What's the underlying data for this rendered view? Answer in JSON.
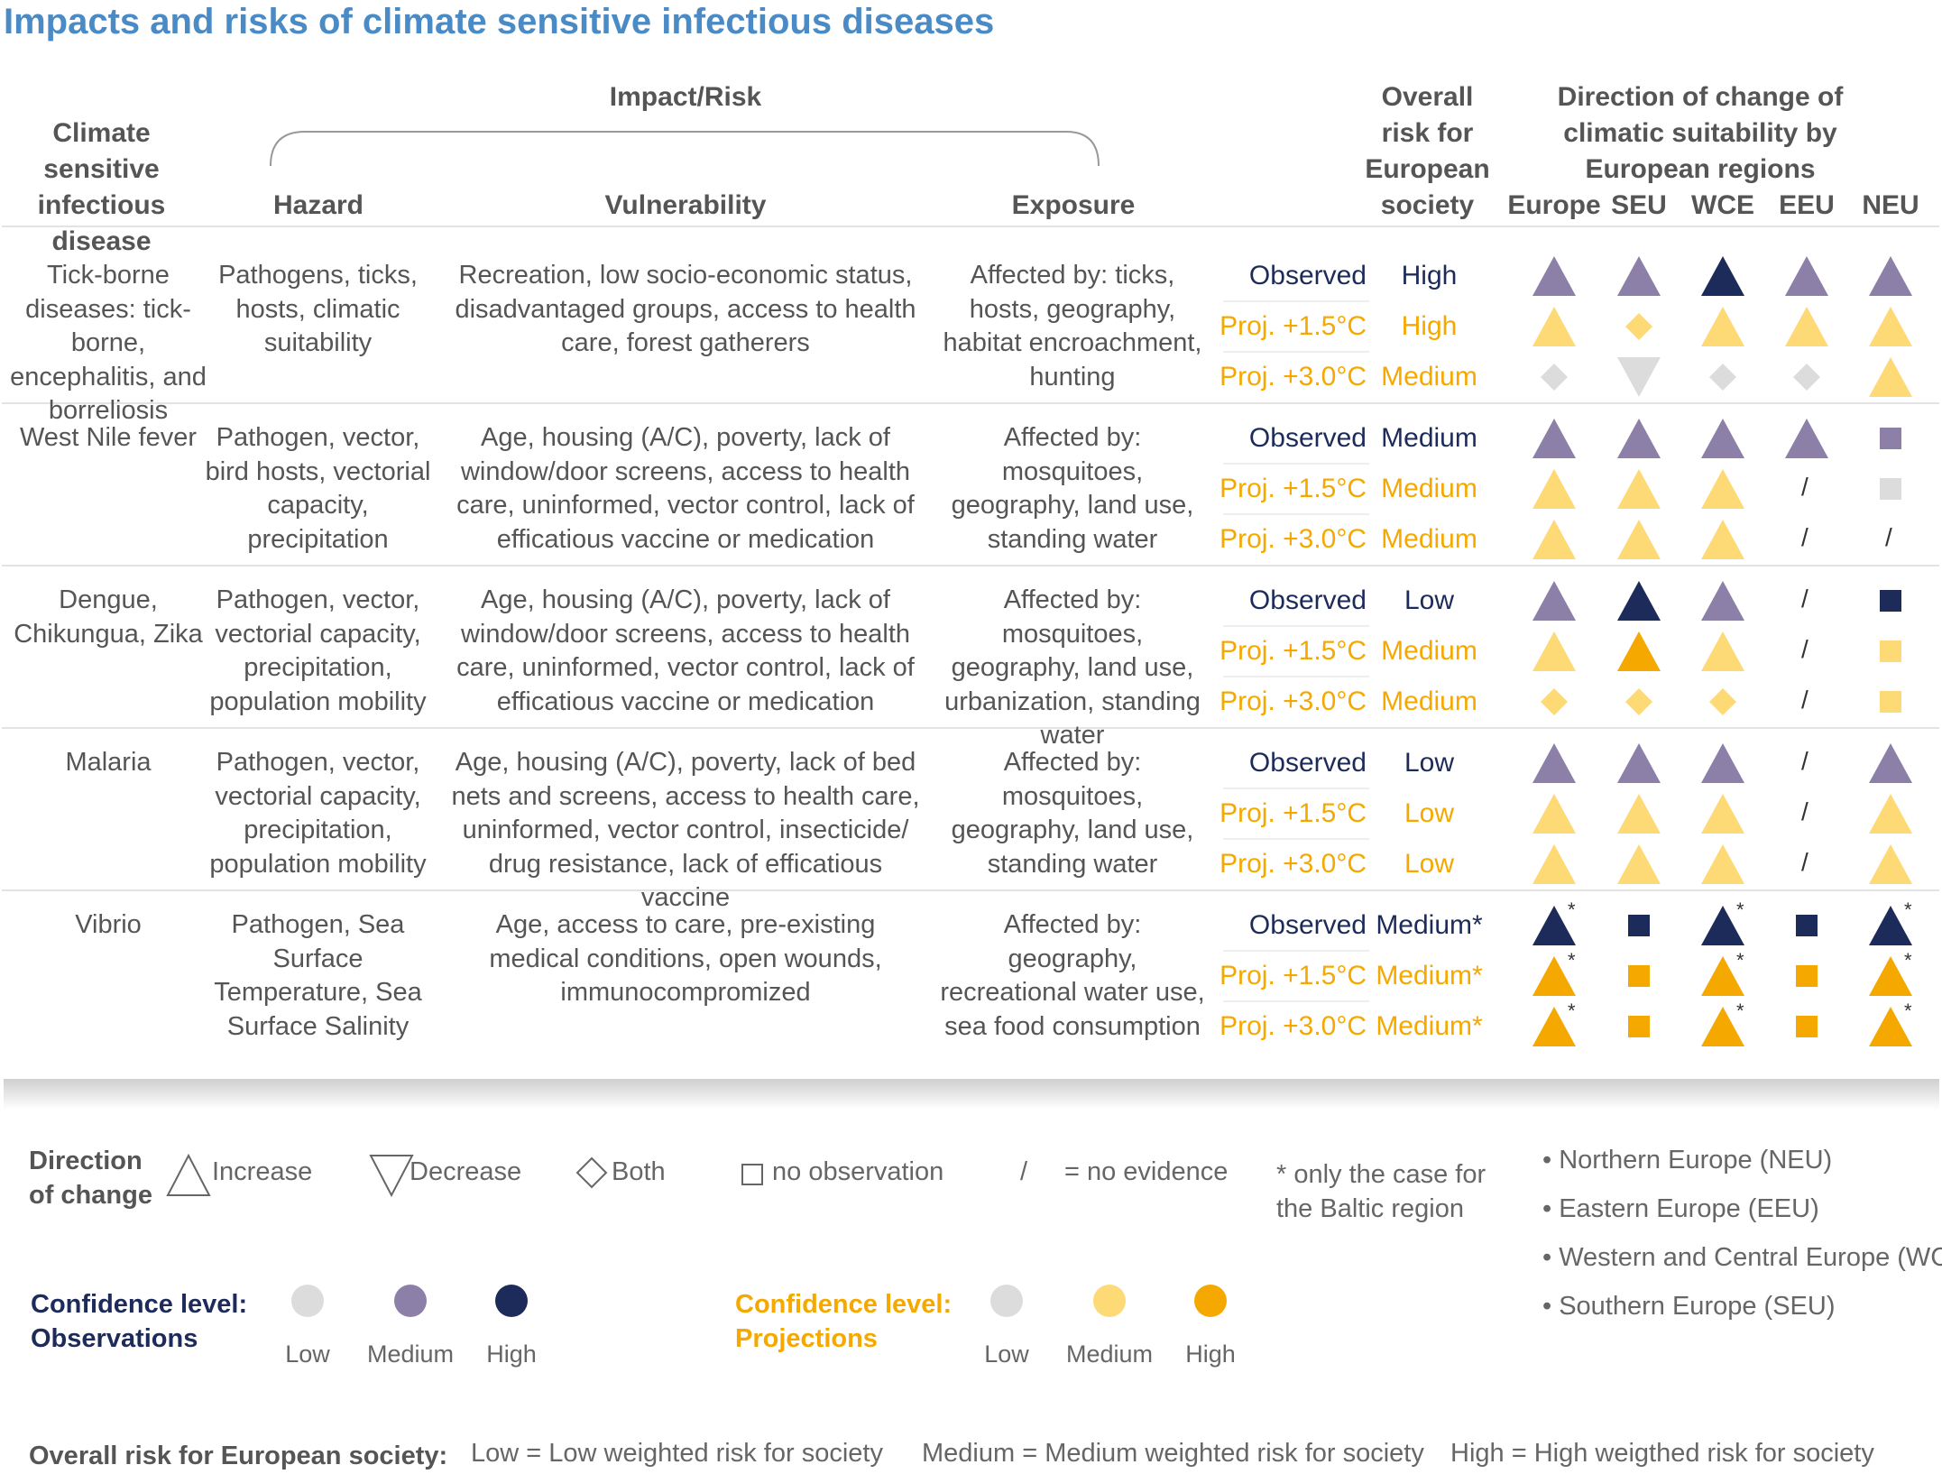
{
  "title": "Impacts and risks of climate sensitive infectious diseases",
  "headers": {
    "disease": "Climate sensitive infectious disease",
    "impact_risk": "Impact/Risk",
    "hazard": "Hazard",
    "vulnerability": "Vulnerability",
    "exposure": "Exposure",
    "overall_risk": "Overall risk for European society",
    "direction": "Direction of change of climatic suitability by European regions",
    "regions": [
      "Europe",
      "SEU",
      "WCE",
      "EEU",
      "NEU"
    ]
  },
  "period_labels": [
    "Observed",
    "Proj. +1.5°C",
    "Proj. +3.0°C"
  ],
  "rows": [
    {
      "disease": "Tick-borne diseases: tick-borne, encephalitis, and borreliosis",
      "hazard": "Pathogens, ticks, hosts, climatic suitability",
      "vulnerability": "Recreation, low socio-economic status, disadvantaged groups, access to health care, forest gatherers",
      "exposure": "Affected by: ticks, hosts, geography, habitat encroachment, hunting",
      "risk": [
        "High",
        "High",
        "Medium"
      ],
      "symbols": [
        [
          "up-med-obs",
          "up-med-obs",
          "up-high-obs",
          "up-med-obs",
          "up-med-obs"
        ],
        [
          "up-med-proj",
          "both-med-proj",
          "up-med-proj",
          "up-med-proj",
          "up-med-proj"
        ],
        [
          "both-low",
          "down-low",
          "both-low",
          "both-low",
          "up-med-proj"
        ]
      ]
    },
    {
      "disease": "West Nile fever",
      "hazard": "Pathogen, vector, bird hosts, vectorial capacity, precipitation",
      "vulnerability": "Age, housing (A/C), poverty, lack of window/door screens, access to health care, uninformed, vector control, lack of efficatious vaccine or medication",
      "exposure": "Affected by: mosquitoes, geography, land use, standing water",
      "risk": [
        "Medium",
        "Medium",
        "Medium"
      ],
      "symbols": [
        [
          "up-med-obs",
          "up-med-obs",
          "up-med-obs",
          "up-med-obs",
          "sq-med-obs"
        ],
        [
          "up-med-proj",
          "up-med-proj",
          "up-med-proj",
          "slash",
          "sq-low"
        ],
        [
          "up-med-proj",
          "up-med-proj",
          "up-med-proj",
          "slash",
          "slash"
        ]
      ]
    },
    {
      "disease": "Dengue, Chikungua, Zika",
      "hazard": "Pathogen, vector, vectorial capacity, precipitation, population mobility",
      "vulnerability": "Age, housing (A/C), poverty, lack of window/door screens, access to health care, uninformed, vector control, lack of efficatious vaccine or medication",
      "exposure": "Affected by: mosquitoes, geography, land use, urbanization, standing water",
      "risk": [
        "Low",
        "Medium",
        "Medium"
      ],
      "symbols": [
        [
          "up-med-obs",
          "up-high-obs",
          "up-med-obs",
          "slash",
          "sq-high-obs"
        ],
        [
          "up-med-proj",
          "up-high-proj",
          "up-med-proj",
          "slash",
          "sq-med-proj"
        ],
        [
          "both-med-proj",
          "both-med-proj",
          "both-med-proj",
          "slash",
          "sq-med-proj"
        ]
      ]
    },
    {
      "disease": "Malaria",
      "hazard": "Pathogen, vector, vectorial capacity, precipitation, population mobility",
      "vulnerability": "Age, housing (A/C), poverty, lack of bed nets and screens, access to health care, uninformed, vector control, insecticide/ drug resistance, lack of efficatious vaccine",
      "exposure": "Affected by: mosquitoes, geography, land use, standing water",
      "risk": [
        "Low",
        "Low",
        "Low"
      ],
      "symbols": [
        [
          "up-med-obs",
          "up-med-obs",
          "up-med-obs",
          "slash",
          "up-med-obs"
        ],
        [
          "up-med-proj",
          "up-med-proj",
          "up-med-proj",
          "slash",
          "up-med-proj"
        ],
        [
          "up-med-proj",
          "up-med-proj",
          "up-med-proj",
          "slash",
          "up-med-proj"
        ]
      ]
    },
    {
      "disease": "Vibrio",
      "hazard": "Pathogen, Sea Surface Temperature, Sea Surface Salinity",
      "vulnerability": "Age, access to care, pre-existing medical conditions, open wounds, immunocompromized",
      "exposure": "Affected by: geography, recreational water use, sea food consumption",
      "risk": [
        "Medium*",
        "Medium*",
        "Medium*"
      ],
      "symbols": [
        [
          "up-high-obs*",
          "sq-high-obs",
          "up-high-obs*",
          "sq-high-obs",
          "up-high-obs*"
        ],
        [
          "up-high-proj*",
          "sq-high-proj",
          "up-high-proj*",
          "sq-high-proj",
          "up-high-proj*"
        ],
        [
          "up-high-proj*",
          "sq-high-proj",
          "up-high-proj*",
          "sq-high-proj",
          "up-high-proj*"
        ]
      ]
    }
  ],
  "legend": {
    "direction_title": "Direction of change",
    "increase": "Increase",
    "decrease": "Decrease",
    "both": "Both",
    "no_observation": "no observation",
    "slash": "/",
    "no_evidence": "= no evidence",
    "star_note": "* only the case for the Baltic region",
    "regions": [
      "• Northern Europe (NEU)",
      "• Eastern Europe (EEU)",
      "• Western and Central Europe (WCE)",
      "• Southern Europe (SEU)"
    ],
    "conf_obs_title": "Confidence level: Observations",
    "conf_proj_title": "Confidence level: Projections",
    "levels": [
      "Low",
      "Medium",
      "High"
    ],
    "overall_title": "Overall risk for European society:",
    "overall_low": "Low = Low weighted risk for society",
    "overall_medium": "Medium = Medium weighted risk for society",
    "overall_high": "High = High weigthed risk for society"
  },
  "colors": {
    "title": "#4a8ac5",
    "obs_low": "#dcdcdc",
    "obs_med": "#8d80a8",
    "obs_high": "#1d2b5a",
    "proj_low": "#dcdcdc",
    "proj_med": "#fdda76",
    "proj_high": "#f5a900"
  }
}
